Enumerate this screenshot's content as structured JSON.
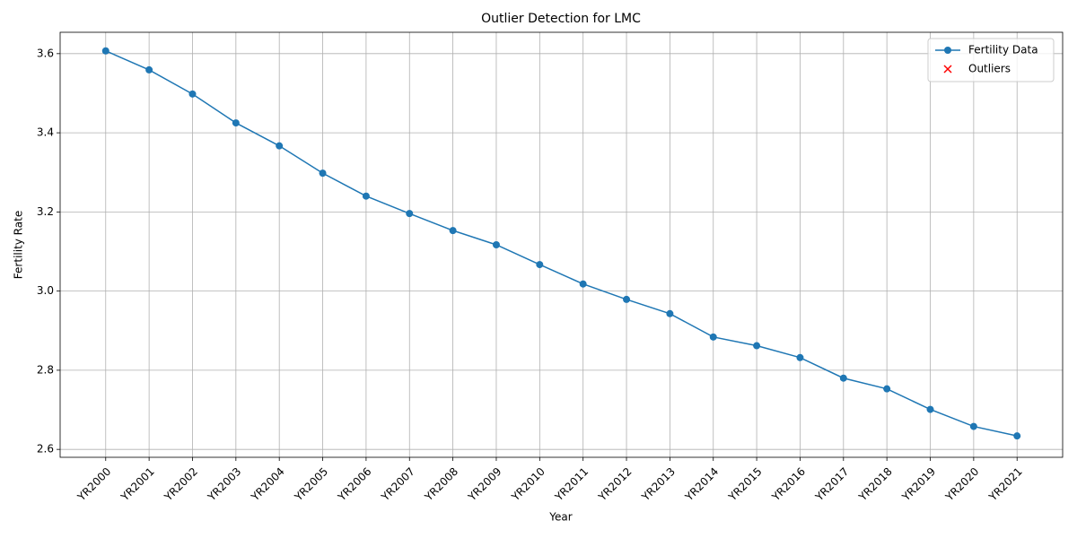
{
  "chart_data": {
    "type": "line",
    "title": "Outlier Detection for LMC",
    "xlabel": "Year",
    "ylabel": "Fertility Rate",
    "categories": [
      "YR2000",
      "YR2001",
      "YR2002",
      "YR2003",
      "YR2004",
      "YR2005",
      "YR2006",
      "YR2007",
      "YR2008",
      "YR2009",
      "YR2010",
      "YR2011",
      "YR2012",
      "YR2013",
      "YR2014",
      "YR2015",
      "YR2016",
      "YR2017",
      "YR2018",
      "YR2019",
      "YR2020",
      "YR2021"
    ],
    "series": [
      {
        "name": "Fertility Data",
        "color": "#1f77b4",
        "marker": "o",
        "values": [
          3.607,
          3.559,
          3.498,
          3.425,
          3.367,
          3.298,
          3.24,
          3.196,
          3.153,
          3.117,
          3.067,
          3.018,
          2.979,
          2.943,
          2.884,
          2.862,
          2.832,
          2.78,
          2.753,
          2.701,
          2.658,
          2.634
        ]
      },
      {
        "name": "Outliers",
        "color": "#ff0000",
        "marker": "x",
        "values": [
          null,
          null,
          null,
          null,
          null,
          null,
          null,
          null,
          null,
          null,
          null,
          null,
          null,
          null,
          null,
          null,
          null,
          null,
          null,
          null,
          null,
          null
        ]
      }
    ],
    "ylim": [
      2.58,
      3.654
    ],
    "yticks": [
      2.6,
      2.8,
      {
        "value": 3,
        "label": "3.0"
      },
      3.2,
      3.4,
      3.6
    ],
    "grid": true,
    "legend": "upper right"
  }
}
